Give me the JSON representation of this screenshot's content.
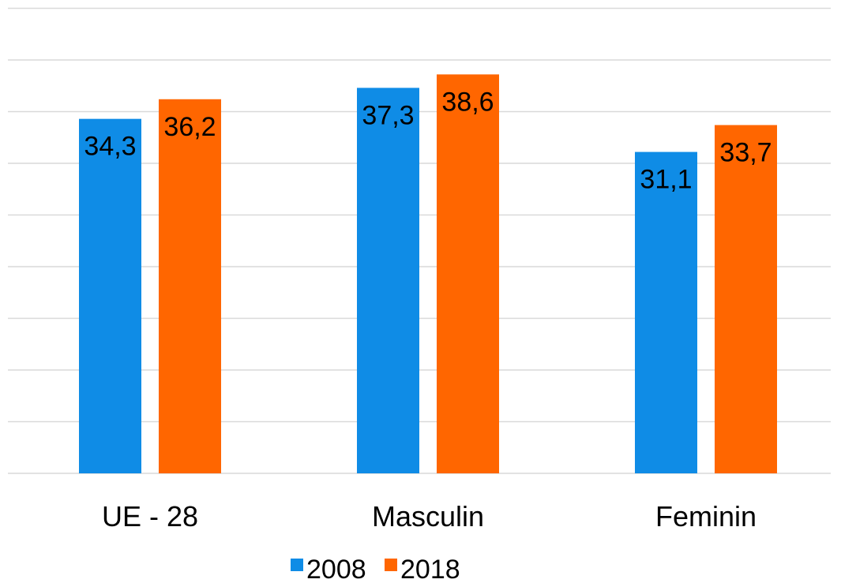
{
  "chart_data": {
    "type": "bar",
    "categories": [
      "UE - 28",
      "Masculin",
      "Feminin"
    ],
    "series": [
      {
        "name": "2008",
        "color": "#0f8ce6",
        "values": [
          34.3,
          37.3,
          31.1
        ],
        "value_labels": [
          "34,3",
          "37,3",
          "31,1"
        ]
      },
      {
        "name": "2018",
        "color": "#ff6600",
        "values": [
          36.2,
          38.6,
          33.7
        ],
        "value_labels": [
          "36,2",
          "38,6",
          "33,7"
        ]
      }
    ],
    "ylim": [
      0,
      45
    ],
    "yticks": [
      0,
      5,
      10,
      15,
      20,
      25,
      30,
      35,
      40,
      45
    ],
    "grid": true,
    "legend": "bottom"
  }
}
